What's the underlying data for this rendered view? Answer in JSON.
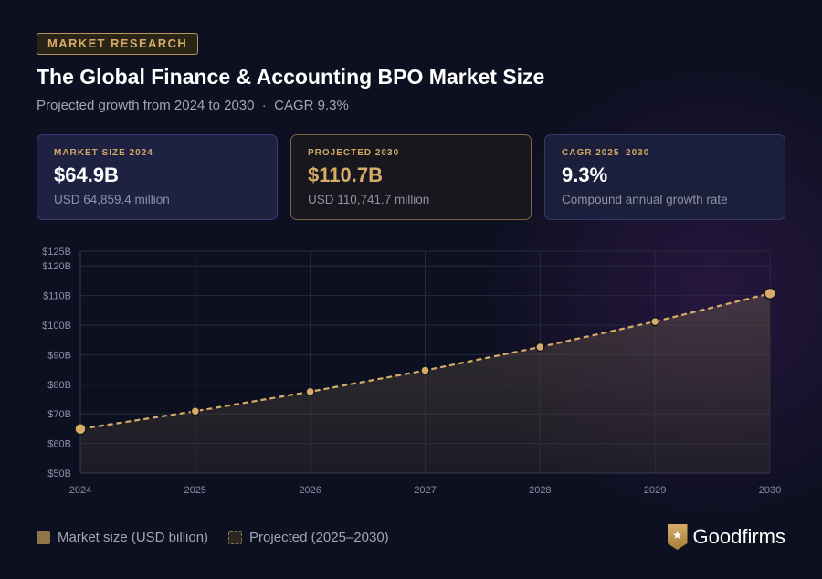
{
  "header": {
    "tag": "MARKET RESEARCH",
    "title": "The Global Finance & Accounting BPO Market Size",
    "subtitle": "Projected growth from 2024 to 2030  ·  CAGR 9.3%"
  },
  "cards": [
    {
      "label": "MARKET SIZE 2024",
      "value": "$64.9B",
      "desc": "USD 64,859.4 million"
    },
    {
      "label": "PROJECTED 2030",
      "value": "$110.7B",
      "desc": "USD 110,741.7 million"
    },
    {
      "label": "CAGR 2025–2030",
      "value": "9.3%",
      "desc": "Compound annual growth rate"
    }
  ],
  "legend": {
    "actual": "Market size (USD billion)",
    "projected": "Projected (2025–2030)"
  },
  "brand": "Goodfirms",
  "colors": {
    "accent": "#d6ac68",
    "background": "#0d1020"
  },
  "chart_data": {
    "type": "area",
    "categories": [
      "2024",
      "2025",
      "2026",
      "2027",
      "2028",
      "2029",
      "2030"
    ],
    "values": [
      64.9,
      70.9,
      77.5,
      84.7,
      92.6,
      101.2,
      110.7
    ],
    "ylim": [
      50,
      125
    ],
    "yticks": [
      50,
      60,
      70,
      80,
      90,
      100,
      110,
      120,
      125
    ],
    "ytick_labels": [
      "$50B",
      "$60B",
      "$70B",
      "$80B",
      "$90B",
      "$100B",
      "$110B",
      "$120B",
      "$125B"
    ],
    "grid": true,
    "legend": "bottom-left",
    "line_style": "dashed"
  }
}
